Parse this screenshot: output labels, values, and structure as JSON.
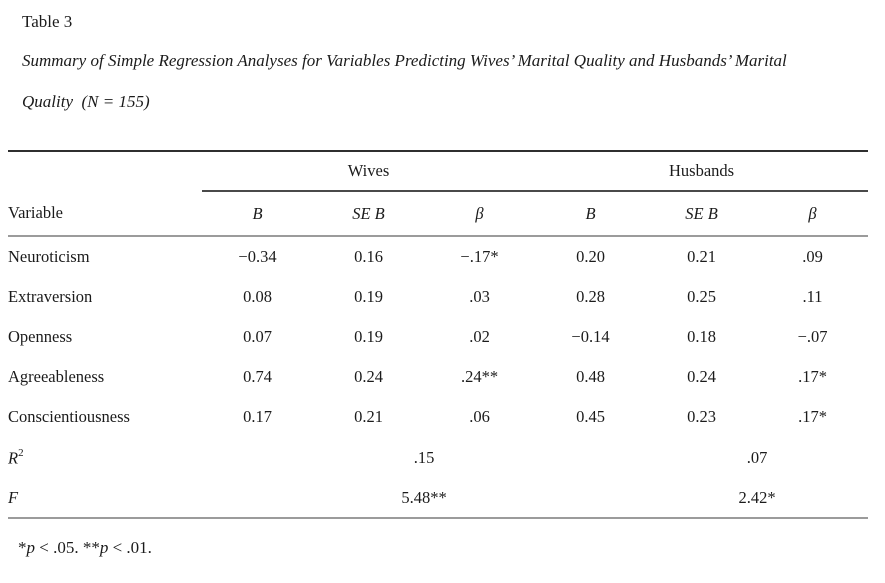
{
  "page": {
    "title": "Table 3",
    "caption_line1": "Summary of Simple Regression Analyses for Variables Predicting Wives’ Marital Quality and Husbands’ Marital",
    "caption_line2": "Quality  (N = 155)"
  },
  "table": {
    "group_headers": {
      "wives": "Wives",
      "husbands": "Husbands"
    },
    "column_headers": {
      "variable": "Variable",
      "b": "B",
      "seb": "SE B",
      "beta": "β"
    },
    "rows": [
      {
        "variable": "Neuroticism",
        "wives": {
          "b": "−0.34",
          "seb": "0.16",
          "beta": "−.17*"
        },
        "husbands": {
          "b": "0.20",
          "seb": "0.21",
          "beta": ".09"
        }
      },
      {
        "variable": "Extraversion",
        "wives": {
          "b": "0.08",
          "seb": "0.19",
          "beta": ".03"
        },
        "husbands": {
          "b": "0.28",
          "seb": "0.25",
          "beta": ".11"
        }
      },
      {
        "variable": "Openness",
        "wives": {
          "b": "0.07",
          "seb": "0.19",
          "beta": ".02"
        },
        "husbands": {
          "b": "−0.14",
          "seb": "0.18",
          "beta": "−.07"
        }
      },
      {
        "variable": "Agreeableness",
        "wives": {
          "b": "0.74",
          "seb": "0.24",
          "beta": ".24**"
        },
        "husbands": {
          "b": "0.48",
          "seb": "0.24",
          "beta": ".17*"
        }
      },
      {
        "variable": "Conscientiousness",
        "wives": {
          "b": "0.17",
          "seb": "0.21",
          "beta": ".06"
        },
        "husbands": {
          "b": "0.45",
          "seb": "0.23",
          "beta": ".17*"
        }
      }
    ],
    "summary_rows": {
      "r2": {
        "label_base": "R",
        "label_sup": "2",
        "wives": ".15",
        "husbands": ".07"
      },
      "f": {
        "label": "F",
        "wives": "5.48**",
        "husbands": "2.42*"
      }
    }
  },
  "note": {
    "star1": "*",
    "p1": "p",
    "seg1": " < .05. **",
    "p2": "p",
    "seg2": " < .01."
  }
}
